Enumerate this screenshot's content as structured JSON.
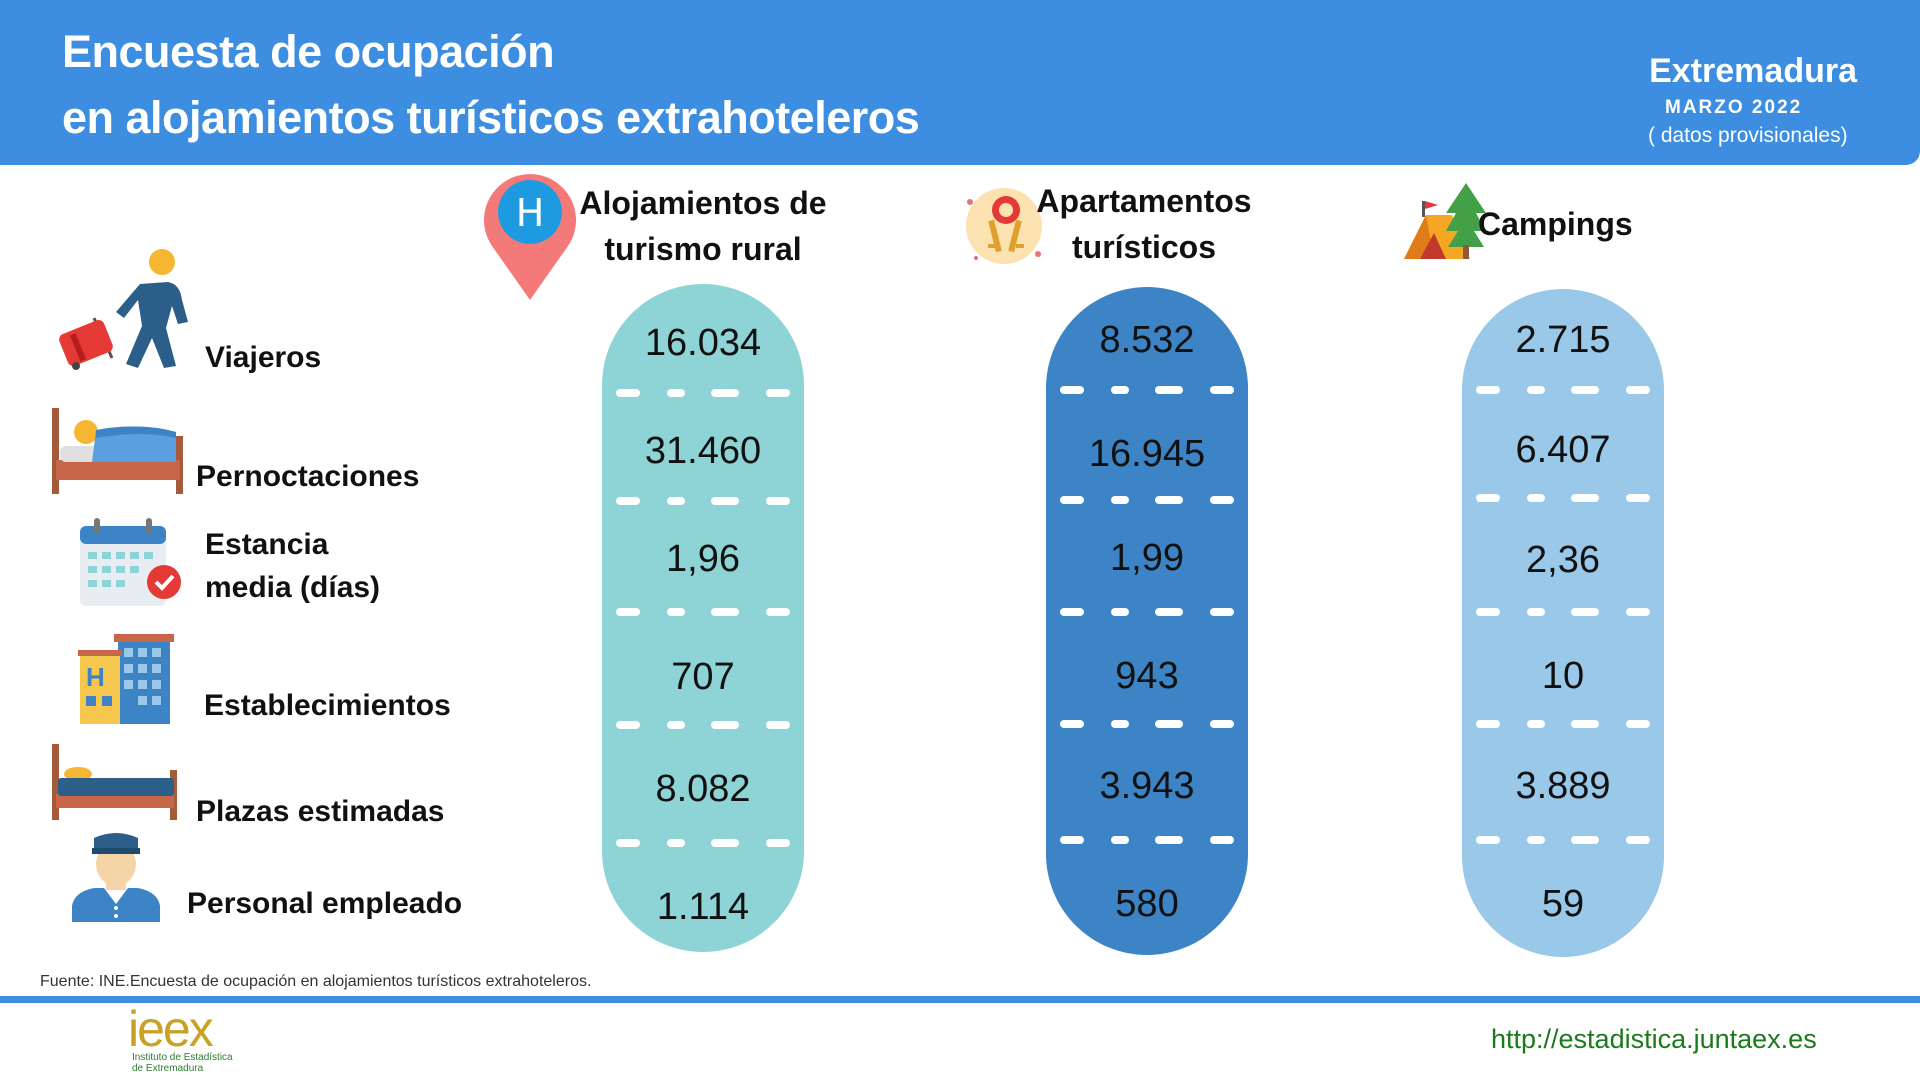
{
  "header": {
    "title_line1": "Encuesta de ocupación",
    "title_line2": "en alojamientos turísticos extrahoteleros",
    "region": "Extremadura",
    "period": "MARZO 2022",
    "provisional": "( datos provisionales)"
  },
  "rows": {
    "viajeros": "Viajeros",
    "pernoctaciones": "Pernoctaciones",
    "estancia_line1": "Estancia",
    "estancia_line2": "media (días)",
    "establecimientos": "Establecimientos",
    "plazas": "Plazas estimadas",
    "personal": "Personal empleado"
  },
  "categories": {
    "rural": {
      "line1": "Alojamientos de",
      "line2": "turismo rural",
      "icon_letter": "H"
    },
    "apart": {
      "line1": "Apartamentos",
      "line2": "turísticos"
    },
    "camp": {
      "line1": "Campings"
    }
  },
  "values": {
    "rural": [
      "16.034",
      "31.460",
      "1,96",
      "707",
      "8.082",
      "1.114"
    ],
    "apart": [
      "8.532",
      "16.945",
      "1,99",
      "943",
      "3.943",
      "580"
    ],
    "camp": [
      "2.715",
      "6.407",
      "2,36",
      "10",
      "3.889",
      "59"
    ]
  },
  "footer": {
    "source": "Fuente: INE.Encuesta de ocupación en alojamientos turísticos extrahoteleros.",
    "url": "http://estadistica.juntaex.es",
    "logo_word": "ieex",
    "logo_sub1": "Instituto de Estadística",
    "logo_sub2": "de Extremadura"
  },
  "colors": {
    "header_blue": "#3d8de0",
    "capsule_rural": "#8ed4d6",
    "capsule_apart": "#3d84c6",
    "capsule_camp": "#9ac8e8",
    "url_green": "#1b7a1b"
  },
  "icons": {
    "viajeros": "traveler-icon",
    "pernoctaciones": "bed-sleeping-icon",
    "estancia": "calendar-check-icon",
    "establecimientos": "hotel-building-icon",
    "plazas": "bed-icon",
    "personal": "employee-icon",
    "rural": "hotel-location-pin-icon",
    "apart": "keys-icon",
    "camp": "tent-tree-icon"
  }
}
